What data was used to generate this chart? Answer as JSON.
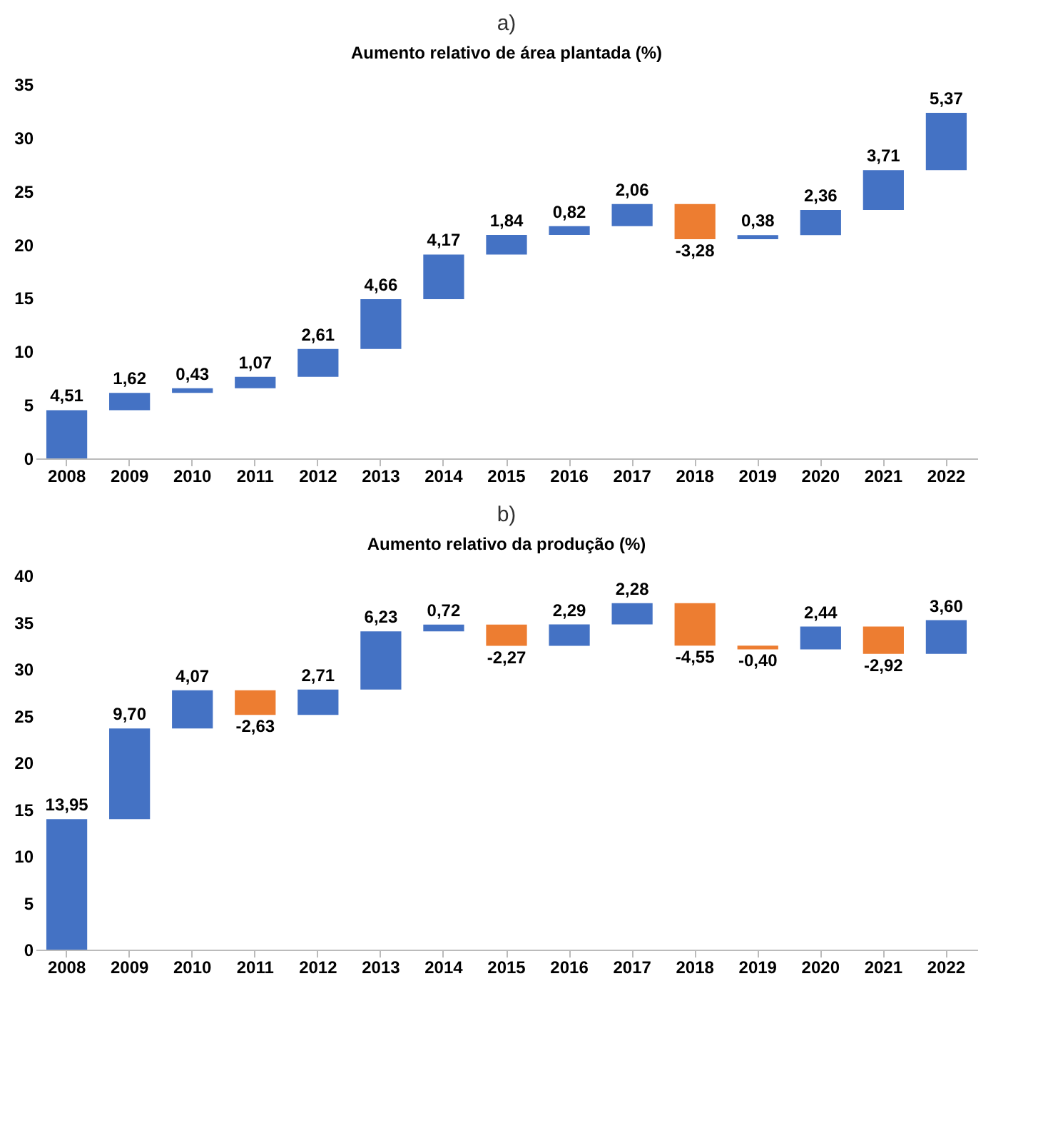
{
  "chart_data": [
    {
      "type": "bar",
      "title": "a)",
      "subtitle": "Aumento relativo de área plantada (%)",
      "categories": [
        "2008",
        "2009",
        "2010",
        "2011",
        "2012",
        "2013",
        "2014",
        "2015",
        "2016",
        "2017",
        "2018",
        "2019",
        "2020",
        "2021",
        "2022"
      ],
      "values": [
        4.51,
        1.62,
        0.43,
        1.07,
        2.61,
        4.66,
        4.17,
        1.84,
        0.82,
        2.06,
        -3.28,
        0.38,
        2.36,
        3.71,
        5.37
      ],
      "base": [
        0,
        4.51,
        6.13,
        6.56,
        7.63,
        10.24,
        14.9,
        19.07,
        20.91,
        21.73,
        23.79,
        20.51,
        20.89,
        23.25,
        26.96
      ],
      "value_labels": [
        "4,51",
        "1,62",
        "0,43",
        "1,07",
        "2,61",
        "4,66",
        "4,17",
        "1,84",
        "0,82",
        "2,06",
        "-3,28",
        "0,38",
        "2,36",
        "3,71",
        "5,37"
      ],
      "colors": [
        "#4472c4",
        "#4472c4",
        "#4472c4",
        "#4472c4",
        "#4472c4",
        "#4472c4",
        "#4472c4",
        "#4472c4",
        "#4472c4",
        "#4472c4",
        "#ed7d31",
        "#4472c4",
        "#4472c4",
        "#4472c4",
        "#4472c4"
      ],
      "ylim": [
        0,
        35
      ],
      "yticks": [
        0,
        5,
        10,
        15,
        20,
        25,
        30,
        35
      ],
      "grid": false
    },
    {
      "type": "bar",
      "title": "b)",
      "subtitle": "Aumento relativo da produção (%)",
      "categories": [
        "2008",
        "2009",
        "2010",
        "2011",
        "2012",
        "2013",
        "2014",
        "2015",
        "2016",
        "2017",
        "2018",
        "2019",
        "2020",
        "2021",
        "2022"
      ],
      "values": [
        13.95,
        9.7,
        4.07,
        -2.63,
        2.71,
        6.23,
        0.72,
        -2.27,
        2.29,
        2.28,
        -4.55,
        -0.4,
        2.44,
        -2.92,
        3.6
      ],
      "base": [
        0,
        13.95,
        23.65,
        27.72,
        25.09,
        27.8,
        34.03,
        34.75,
        32.48,
        34.77,
        37.05,
        32.5,
        32.1,
        34.54,
        31.62
      ],
      "value_labels": [
        "13,95",
        "9,70",
        "4,07",
        "-2,63",
        "2,71",
        "6,23",
        "0,72",
        "-2,27",
        "2,29",
        "2,28",
        "-4,55",
        "-0,40",
        "2,44",
        "-2,92",
        "3,60"
      ],
      "colors": [
        "#4472c4",
        "#4472c4",
        "#4472c4",
        "#ed7d31",
        "#4472c4",
        "#4472c4",
        "#4472c4",
        "#ed7d31",
        "#4472c4",
        "#4472c4",
        "#ed7d31",
        "#ed7d31",
        "#4472c4",
        "#ed7d31",
        "#4472c4"
      ],
      "ylim": [
        0,
        40
      ],
      "yticks": [
        0,
        5,
        10,
        15,
        20,
        25,
        30,
        35,
        40
      ],
      "grid": false
    }
  ]
}
